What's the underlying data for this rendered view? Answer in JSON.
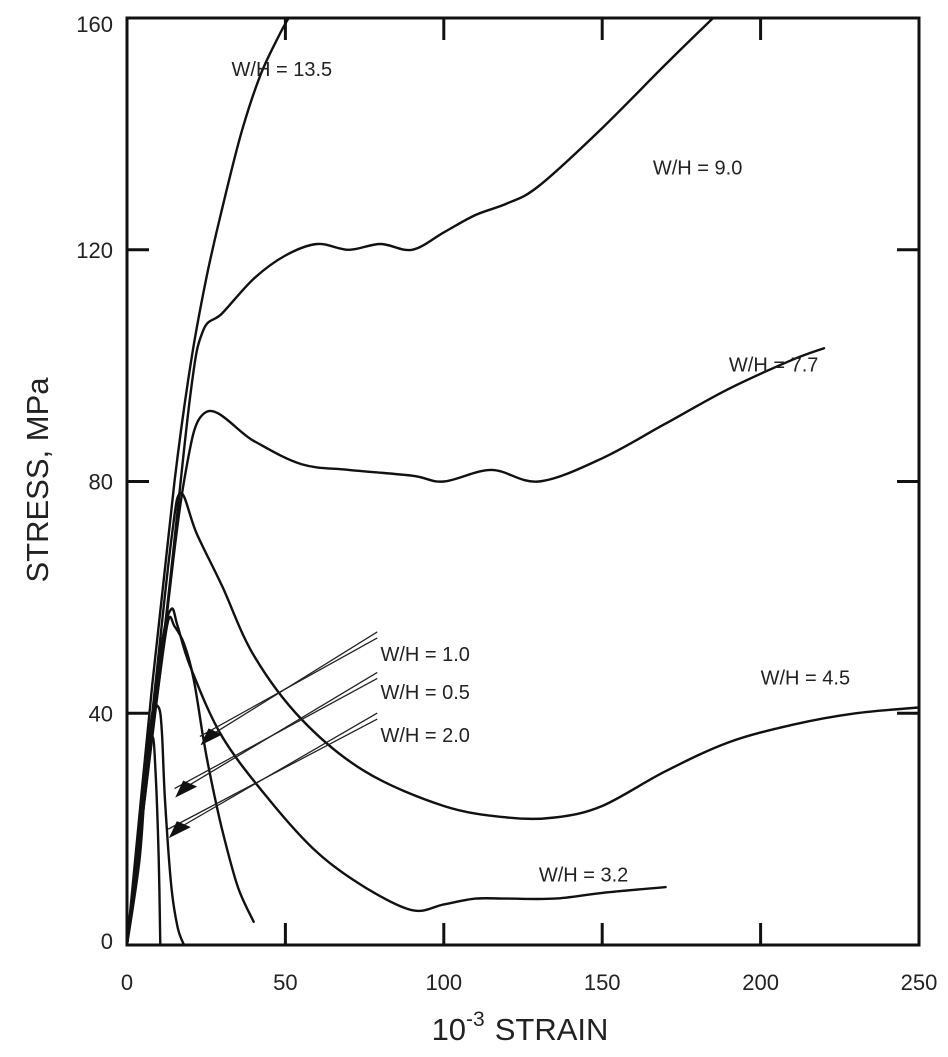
{
  "chart_data": {
    "type": "line",
    "xlabel_base": "10",
    "xlabel_exp": "-3",
    "xlabel_text": "STRAIN",
    "ylabel": "STRESS, MPa",
    "xlim": [
      0,
      250
    ],
    "ylim": [
      0,
      160
    ],
    "x_ticks": [
      0,
      50,
      100,
      150,
      200,
      250
    ],
    "y_ticks": [
      0,
      40,
      80,
      120,
      160
    ],
    "grid": false,
    "series": [
      {
        "name": "W/H = 0.5",
        "points": [
          [
            0,
            0
          ],
          [
            3,
            15
          ],
          [
            6,
            30
          ],
          [
            8,
            36
          ],
          [
            9,
            30
          ],
          [
            10,
            15
          ],
          [
            10.5,
            0
          ]
        ]
      },
      {
        "name": "W/H = 1.0",
        "points": [
          [
            0,
            0
          ],
          [
            4,
            15
          ],
          [
            6,
            30
          ],
          [
            8,
            40
          ],
          [
            10,
            41
          ],
          [
            11,
            37
          ],
          [
            12,
            25
          ],
          [
            14,
            10
          ],
          [
            16,
            3
          ],
          [
            18,
            0
          ]
        ]
      },
      {
        "name": "W/H = 2.0",
        "points": [
          [
            0,
            0
          ],
          [
            5,
            25
          ],
          [
            10,
            45
          ],
          [
            13,
            56
          ],
          [
            15,
            55
          ],
          [
            18,
            52
          ],
          [
            21,
            46
          ],
          [
            24,
            36
          ],
          [
            26,
            30
          ],
          [
            30,
            20
          ],
          [
            35,
            10
          ],
          [
            40,
            4
          ]
        ]
      },
      {
        "name": "W/H = 3.2",
        "points": [
          [
            0,
            0
          ],
          [
            6,
            30
          ],
          [
            11,
            52
          ],
          [
            14,
            58
          ],
          [
            16,
            55
          ],
          [
            20,
            48
          ],
          [
            30,
            36
          ],
          [
            45,
            25
          ],
          [
            60,
            16
          ],
          [
            75,
            10
          ],
          [
            90,
            6
          ],
          [
            100,
            7
          ],
          [
            110,
            8
          ],
          [
            120,
            8
          ],
          [
            135,
            8
          ],
          [
            150,
            9
          ],
          [
            170,
            10
          ]
        ]
      },
      {
        "name": "W/H = 4.5",
        "points": [
          [
            0,
            0
          ],
          [
            8,
            40
          ],
          [
            14,
            70
          ],
          [
            17,
            78
          ],
          [
            22,
            71
          ],
          [
            30,
            62
          ],
          [
            40,
            50
          ],
          [
            55,
            39
          ],
          [
            75,
            30
          ],
          [
            100,
            24
          ],
          [
            120,
            22
          ],
          [
            135,
            22
          ],
          [
            150,
            24
          ],
          [
            170,
            30
          ],
          [
            190,
            35
          ],
          [
            210,
            38
          ],
          [
            230,
            40
          ],
          [
            250,
            41
          ]
        ]
      },
      {
        "name": "W/H = 7.7",
        "points": [
          [
            0,
            0
          ],
          [
            10,
            45
          ],
          [
            18,
            80
          ],
          [
            25,
            92
          ],
          [
            40,
            87
          ],
          [
            55,
            83
          ],
          [
            70,
            82
          ],
          [
            90,
            81
          ],
          [
            100,
            80
          ],
          [
            115,
            82
          ],
          [
            130,
            80
          ],
          [
            150,
            84
          ],
          [
            170,
            90
          ],
          [
            190,
            96
          ],
          [
            210,
            101
          ],
          [
            220,
            103
          ]
        ]
      },
      {
        "name": "W/H = 9.0",
        "points": [
          [
            0,
            0
          ],
          [
            12,
            55
          ],
          [
            20,
            95
          ],
          [
            24,
            106
          ],
          [
            30,
            109
          ],
          [
            40,
            115
          ],
          [
            50,
            119
          ],
          [
            60,
            121
          ],
          [
            70,
            120
          ],
          [
            80,
            121
          ],
          [
            90,
            120
          ],
          [
            100,
            123
          ],
          [
            110,
            126
          ],
          [
            120,
            128
          ],
          [
            130,
            131
          ],
          [
            150,
            141
          ],
          [
            170,
            152
          ],
          [
            185,
            160
          ]
        ]
      },
      {
        "name": "W/H = 13.5",
        "points": [
          [
            0,
            0
          ],
          [
            8,
            45
          ],
          [
            15,
            80
          ],
          [
            20,
            100
          ],
          [
            25,
            115
          ],
          [
            30,
            127
          ],
          [
            36,
            140
          ],
          [
            42,
            150
          ],
          [
            48,
            157
          ],
          [
            51,
            160
          ]
        ]
      }
    ],
    "annotations": [
      {
        "text": "W/H = 13.5",
        "series": "W/H = 13.5"
      },
      {
        "text": "W/H = 9.0",
        "series": "W/H = 9.0"
      },
      {
        "text": "W/H = 7.7",
        "series": "W/H = 7.7"
      },
      {
        "text": "W/H = 4.5",
        "series": "W/H = 4.5"
      },
      {
        "text": "W/H = 3.2",
        "series": "W/H = 3.2"
      },
      {
        "text": "W/H = 1.0",
        "series": "W/H = 1.0"
      },
      {
        "text": "W/H = 0.5",
        "series": "W/H = 0.5"
      },
      {
        "text": "W/H = 2.0",
        "series": "W/H = 2.0"
      }
    ]
  }
}
